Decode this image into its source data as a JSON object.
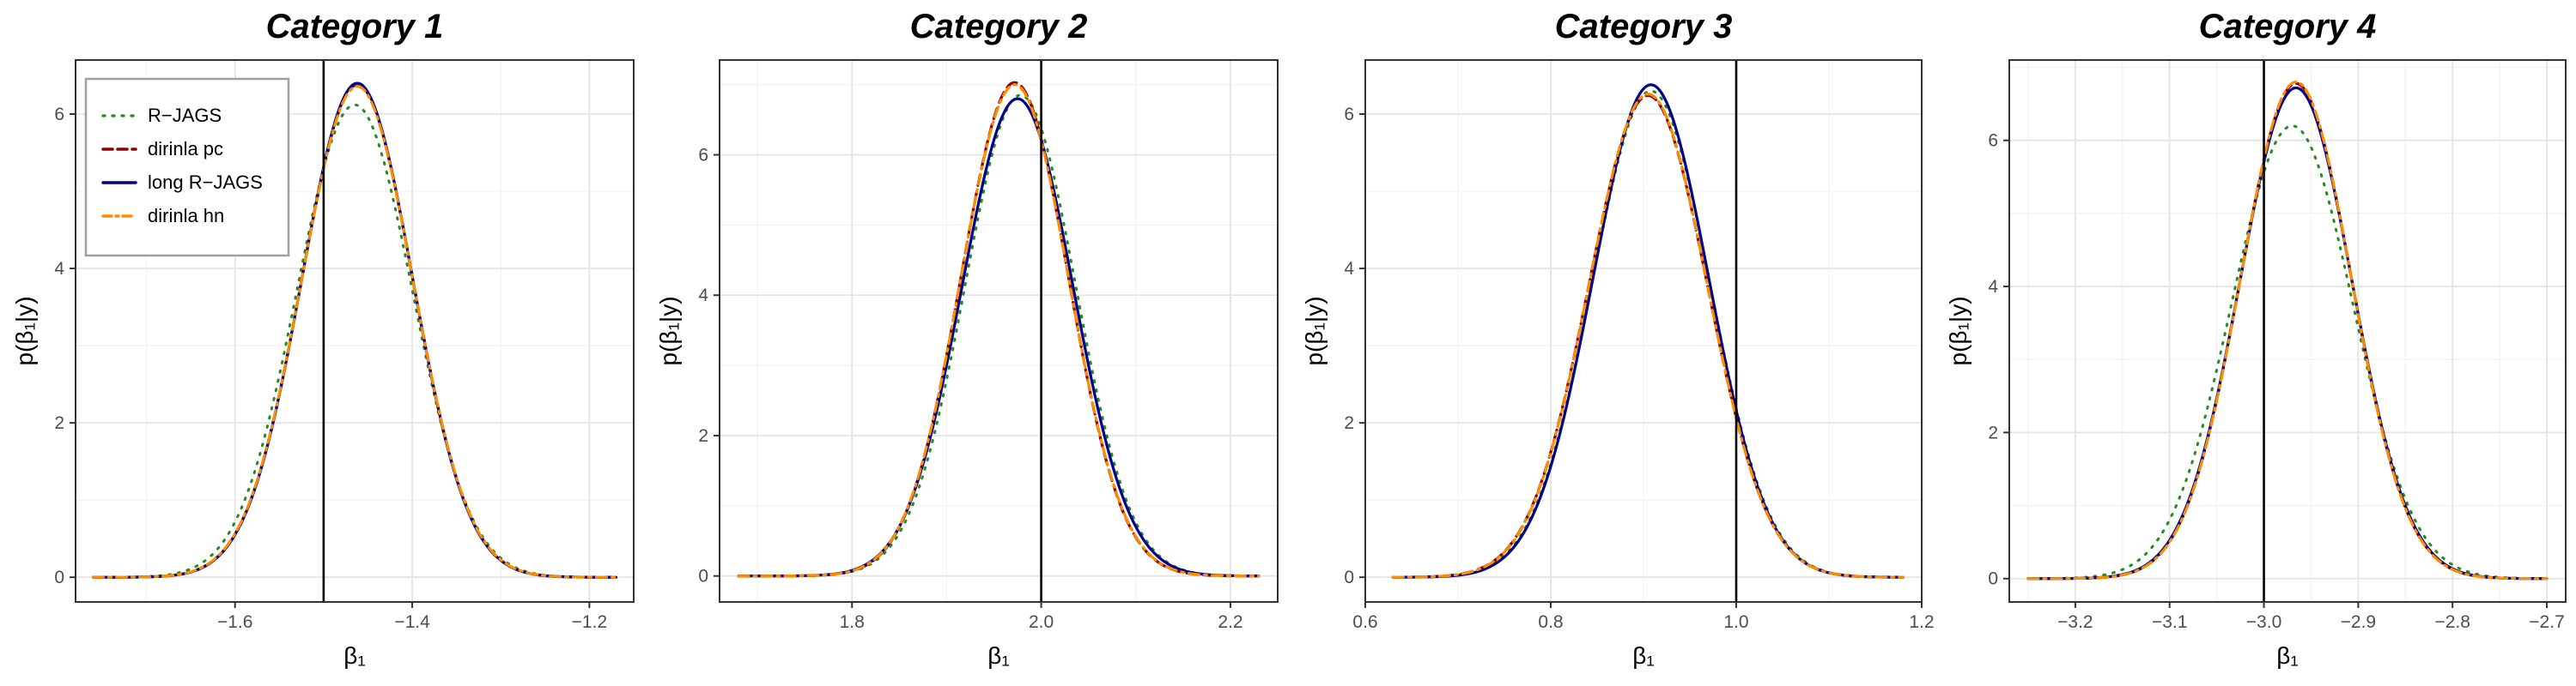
{
  "colors": {
    "panel_border": "#333333",
    "grid_major": "#e4e4e4",
    "grid_minor": "#f2f2f2",
    "text": "#000000",
    "tick_text": "#4d4d4d",
    "ref_line": "#000000",
    "R-JAGS": "#228b22",
    "dirinla pc": "#8b0000",
    "long R-JAGS": "#00008b",
    "dirinla hn": "#ff8c00"
  },
  "legend": {
    "placement": "top-left (inside first panel)",
    "entries": [
      {
        "label": "R−JAGS",
        "style": "dotted",
        "color_key": "R-JAGS"
      },
      {
        "label": "dirinla pc",
        "style": "dashed",
        "color_key": "dirinla pc"
      },
      {
        "label": "long R−JAGS",
        "style": "solid",
        "color_key": "long R-JAGS"
      },
      {
        "label": "dirinla hn",
        "style": "dashdot",
        "color_key": "dirinla hn"
      }
    ]
  },
  "chart_data": [
    {
      "type": "line",
      "title": "Category 1",
      "xlabel": "β₁",
      "ylabel": "p(β₁|y)",
      "xlim": [
        -1.78,
        -1.15
      ],
      "ylim": [
        -0.32,
        6.7
      ],
      "xticks": [
        -1.6,
        -1.4,
        -1.2
      ],
      "xtick_labels": [
        "−1.6",
        "−1.4",
        "−1.2"
      ],
      "yticks": [
        0,
        2,
        4,
        6
      ],
      "ytick_labels": [
        "0",
        "2",
        "4",
        "6"
      ],
      "x_range": [
        -1.76,
        -1.17
      ],
      "ref_line_x": -1.5,
      "grid": true,
      "series": [
        {
          "name": "R−JAGS",
          "mean": -1.465,
          "peak": 6.12
        },
        {
          "name": "dirinla pc",
          "mean": -1.462,
          "peak": 6.38
        },
        {
          "name": "long R−JAGS",
          "mean": -1.462,
          "peak": 6.4
        },
        {
          "name": "dirinla hn",
          "mean": -1.462,
          "peak": 6.36
        }
      ]
    },
    {
      "type": "line",
      "title": "Category 2",
      "xlabel": "β₁",
      "ylabel": "p(β₁|y)",
      "xlim": [
        1.66,
        2.25
      ],
      "ylim": [
        -0.37,
        7.35
      ],
      "xticks": [
        1.8,
        2.0,
        2.2
      ],
      "xtick_labels": [
        "1.8",
        "2.0",
        "2.2"
      ],
      "yticks": [
        0,
        2,
        4,
        6
      ],
      "ytick_labels": [
        "0",
        "2",
        "4",
        "6"
      ],
      "x_range": [
        1.68,
        2.23
      ],
      "ref_line_x": 2.0,
      "grid": true,
      "series": [
        {
          "name": "R−JAGS",
          "mean": 1.978,
          "peak": 6.85
        },
        {
          "name": "dirinla pc",
          "mean": 1.972,
          "peak": 7.03
        },
        {
          "name": "long R−JAGS",
          "mean": 1.975,
          "peak": 6.8
        },
        {
          "name": "dirinla hn",
          "mean": 1.972,
          "peak": 7.0
        }
      ]
    },
    {
      "type": "line",
      "title": "Category 3",
      "xlabel": "β₁",
      "ylabel": "p(β₁|y)",
      "xlim": [
        0.6,
        1.2
      ],
      "ylim": [
        -0.32,
        6.7
      ],
      "xticks": [
        0.6,
        0.8,
        1.0,
        1.2
      ],
      "xtick_labels": [
        "0.6",
        "0.8",
        "1.0",
        "1.2"
      ],
      "yticks": [
        0,
        2,
        4,
        6
      ],
      "ytick_labels": [
        "0",
        "2",
        "4",
        "6"
      ],
      "x_range": [
        0.63,
        1.18
      ],
      "ref_line_x": 1.0,
      "grid": true,
      "series": [
        {
          "name": "R−JAGS",
          "mean": 0.908,
          "peak": 6.3
        },
        {
          "name": "dirinla pc",
          "mean": 0.905,
          "peak": 6.24
        },
        {
          "name": "long R−JAGS",
          "mean": 0.908,
          "peak": 6.38
        },
        {
          "name": "dirinla hn",
          "mean": 0.905,
          "peak": 6.26
        }
      ]
    },
    {
      "type": "line",
      "title": "Category 4",
      "xlabel": "β₁",
      "ylabel": "p(β₁|y)",
      "xlim": [
        -3.27,
        -2.68
      ],
      "ylim": [
        -0.32,
        7.1
      ],
      "xticks": [
        -3.2,
        -3.1,
        -3.0,
        -2.9,
        -2.8,
        -2.7
      ],
      "xtick_labels": [
        "−3.2",
        "−3.1",
        "−3.0",
        "−2.9",
        "−2.8",
        "−2.7"
      ],
      "yticks": [
        0,
        2,
        4,
        6
      ],
      "ytick_labels": [
        "0",
        "2",
        "4",
        "6"
      ],
      "x_range": [
        -3.25,
        -2.7
      ],
      "ref_line_x": -3.0,
      "grid": true,
      "series": [
        {
          "name": "R−JAGS",
          "mean": -2.97,
          "peak": 6.2
        },
        {
          "name": "dirinla pc",
          "mean": -2.966,
          "peak": 6.78
        },
        {
          "name": "long R−JAGS",
          "mean": -2.966,
          "peak": 6.72
        },
        {
          "name": "dirinla hn",
          "mean": -2.966,
          "peak": 6.8
        }
      ]
    }
  ]
}
